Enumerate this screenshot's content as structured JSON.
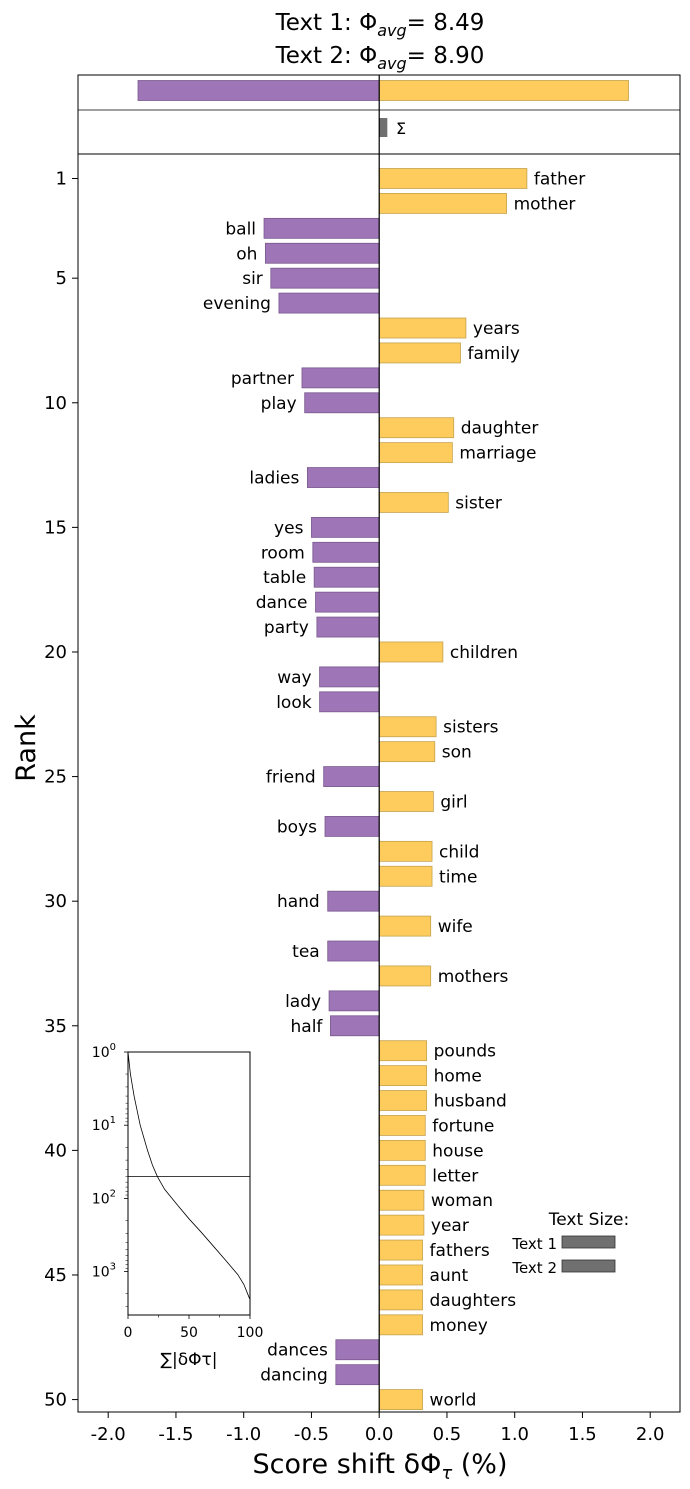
{
  "chart_data": {
    "type": "bar",
    "orientation": "horizontal",
    "title_line1": "Text 1: Φ",
    "title_line1_sub": "avg",
    "title_line1_value": "= 8.49",
    "title_line2": "Text 2: Φ",
    "title_line2_sub": "avg",
    "title_line2_value": "= 8.90",
    "xlabel_main": "Score shift δΦ",
    "xlabel_sub": "τ",
    "xlabel_unit": " (%)",
    "ylabel": "Rank",
    "xlim": [
      -2.2,
      2.2
    ],
    "ylim": [
      50.6,
      0
    ],
    "x_ticks": [
      -2.0,
      -1.5,
      -1.0,
      -0.5,
      0.0,
      0.5,
      1.0,
      1.5,
      2.0
    ],
    "x_tick_labels": [
      "-2.0",
      "-1.5",
      "-1.0",
      "-0.5",
      "0.0",
      "0.5",
      "1.0",
      "1.5",
      "2.0"
    ],
    "y_ticks": [
      1,
      5,
      10,
      15,
      20,
      25,
      30,
      35,
      40,
      45,
      50
    ],
    "y_tick_labels": [
      "1",
      "5",
      "10",
      "15",
      "20",
      "25",
      "30",
      "35",
      "40",
      "45",
      "50"
    ],
    "colors": {
      "positive": "#FECC5D",
      "negative": "#9E75B7",
      "positive_edge": "#C4A24E",
      "negative_edge": "#7A5A8E",
      "sum": "#707070"
    },
    "summary": {
      "total_negative": -1.78,
      "total_positive": 1.84,
      "sum": 0.06,
      "sum_label": "Σ"
    },
    "words": [
      {
        "rank": 1,
        "word": "father",
        "value": 1.09
      },
      {
        "rank": 2,
        "word": "mother",
        "value": 0.94
      },
      {
        "rank": 3,
        "word": "ball",
        "value": -0.85
      },
      {
        "rank": 4,
        "word": "oh",
        "value": -0.84
      },
      {
        "rank": 5,
        "word": "sir",
        "value": -0.8
      },
      {
        "rank": 6,
        "word": "evening",
        "value": -0.74
      },
      {
        "rank": 7,
        "word": "years",
        "value": 0.64
      },
      {
        "rank": 8,
        "word": "family",
        "value": 0.6
      },
      {
        "rank": 9,
        "word": "partner",
        "value": -0.57
      },
      {
        "rank": 10,
        "word": "play",
        "value": -0.55
      },
      {
        "rank": 11,
        "word": "daughter",
        "value": 0.55
      },
      {
        "rank": 12,
        "word": "marriage",
        "value": 0.54
      },
      {
        "rank": 13,
        "word": "ladies",
        "value": -0.53
      },
      {
        "rank": 14,
        "word": "sister",
        "value": 0.51
      },
      {
        "rank": 15,
        "word": "yes",
        "value": -0.5
      },
      {
        "rank": 16,
        "word": "room",
        "value": -0.49
      },
      {
        "rank": 17,
        "word": "table",
        "value": -0.48
      },
      {
        "rank": 18,
        "word": "dance",
        "value": -0.47
      },
      {
        "rank": 19,
        "word": "party",
        "value": -0.46
      },
      {
        "rank": 20,
        "word": "children",
        "value": 0.47
      },
      {
        "rank": 21,
        "word": "way",
        "value": -0.44
      },
      {
        "rank": 22,
        "word": "look",
        "value": -0.44
      },
      {
        "rank": 23,
        "word": "sisters",
        "value": 0.42
      },
      {
        "rank": 24,
        "word": "son",
        "value": 0.41
      },
      {
        "rank": 25,
        "word": "friend",
        "value": -0.41
      },
      {
        "rank": 26,
        "word": "girl",
        "value": 0.4
      },
      {
        "rank": 27,
        "word": "boys",
        "value": -0.4
      },
      {
        "rank": 28,
        "word": "child",
        "value": 0.39
      },
      {
        "rank": 29,
        "word": "time",
        "value": 0.39
      },
      {
        "rank": 30,
        "word": "hand",
        "value": -0.38
      },
      {
        "rank": 31,
        "word": "wife",
        "value": 0.38
      },
      {
        "rank": 32,
        "word": "tea",
        "value": -0.38
      },
      {
        "rank": 33,
        "word": "mothers",
        "value": 0.38
      },
      {
        "rank": 34,
        "word": "lady",
        "value": -0.37
      },
      {
        "rank": 35,
        "word": "half",
        "value": -0.36
      },
      {
        "rank": 36,
        "word": "pounds",
        "value": 0.35
      },
      {
        "rank": 37,
        "word": "home",
        "value": 0.35
      },
      {
        "rank": 38,
        "word": "husband",
        "value": 0.35
      },
      {
        "rank": 39,
        "word": "fortune",
        "value": 0.34
      },
      {
        "rank": 40,
        "word": "house",
        "value": 0.34
      },
      {
        "rank": 41,
        "word": "letter",
        "value": 0.34
      },
      {
        "rank": 42,
        "word": "woman",
        "value": 0.33
      },
      {
        "rank": 43,
        "word": "year",
        "value": 0.33
      },
      {
        "rank": 44,
        "word": "fathers",
        "value": 0.32
      },
      {
        "rank": 45,
        "word": "aunt",
        "value": 0.32
      },
      {
        "rank": 46,
        "word": "daughters",
        "value": 0.32
      },
      {
        "rank": 47,
        "word": "money",
        "value": 0.32
      },
      {
        "rank": 48,
        "word": "dances",
        "value": -0.32
      },
      {
        "rank": 49,
        "word": "dancing",
        "value": -0.32
      },
      {
        "rank": 50,
        "word": "world",
        "value": 0.32
      }
    ],
    "inset": {
      "xlabel": "∑|δΦτ|",
      "x_ticks": [
        0,
        50,
        100
      ],
      "x_tick_labels": [
        "0",
        "50",
        "100"
      ],
      "y_scale": "log",
      "y_tick_bases": [
        "10",
        "10",
        "10",
        "10"
      ],
      "y_tick_exponents": [
        "0",
        "1",
        "2",
        "3"
      ],
      "hline_at_rank": 50,
      "curve": [
        [
          0,
          1
        ],
        [
          2,
          2
        ],
        [
          5,
          4
        ],
        [
          10,
          10
        ],
        [
          16,
          22
        ],
        [
          20,
          35
        ],
        [
          24,
          50
        ],
        [
          30,
          75
        ],
        [
          40,
          120
        ],
        [
          50,
          190
        ],
        [
          60,
          290
        ],
        [
          70,
          450
        ],
        [
          80,
          700
        ],
        [
          90,
          1100
        ],
        [
          95,
          1500
        ],
        [
          99,
          2200
        ],
        [
          100,
          2400
        ],
        [
          100,
          4000
        ]
      ]
    },
    "text_size_legend": {
      "title": "Text Size:",
      "items": [
        {
          "label": "Text 1",
          "value": 1.0
        },
        {
          "label": "Text 2",
          "value": 1.0
        }
      ]
    }
  }
}
